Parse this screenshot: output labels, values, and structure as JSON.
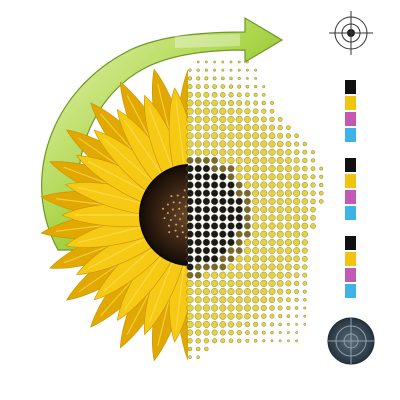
{
  "illustration": {
    "subject": "sunflower-to-halftone",
    "colors": {
      "petal": "#f6c915",
      "petal_dark": "#e0a800",
      "petal_light": "#ffe566",
      "center_dark": "#2a1a10",
      "center_mid": "#5a3820",
      "dot_yellow": "#e6d23a",
      "dot_black": "#1a1a1a",
      "arrow_light": "#d9ec9a",
      "arrow_mid": "#9ccb3c",
      "arrow_dark": "#5f8f1e",
      "target_dark": "#3a4a58"
    }
  },
  "process_swatches": {
    "groups": [
      {
        "name": "group-1",
        "inks": [
          "#111111",
          "#f2c40f",
          "#c25ab5",
          "#3fb3e8"
        ]
      },
      {
        "name": "group-2",
        "inks": [
          "#111111",
          "#f2c40f",
          "#c25ab5",
          "#3fb3e8"
        ]
      },
      {
        "name": "group-3",
        "inks": [
          "#111111",
          "#f2c40f",
          "#c25ab5",
          "#3fb3e8"
        ]
      }
    ]
  },
  "registration_marks": {
    "top": {
      "icon": "registration-target-icon",
      "style": "outline"
    },
    "bottom": {
      "icon": "registration-target-filled-icon",
      "style": "filled"
    }
  }
}
